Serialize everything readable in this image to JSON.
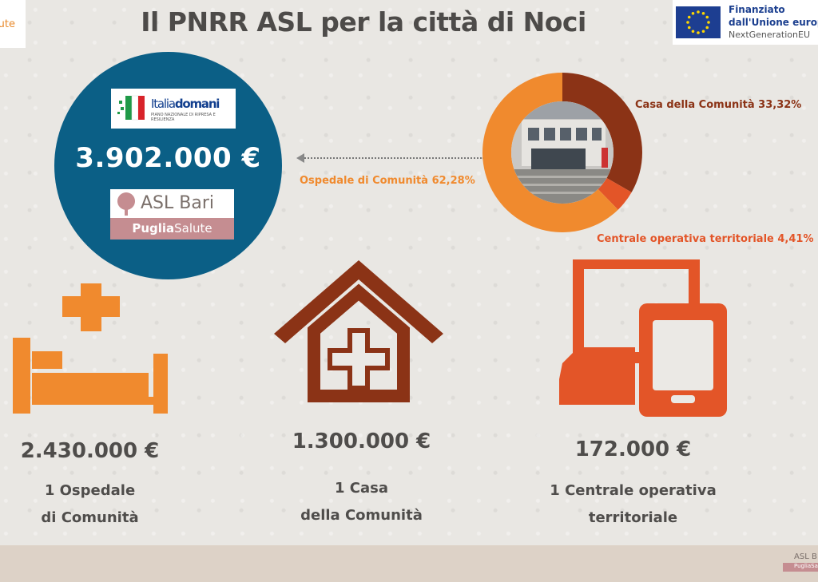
{
  "header": {
    "title": "Il PNRR ASL per la città di Noci",
    "left_logo_fragment": "lute"
  },
  "eu_logo": {
    "line1": "Finanziato",
    "line2": "dall'Unione europea",
    "line3": "NextGenerationEU",
    "flag_color": "#1d3e91",
    "star_color": "#ffd700"
  },
  "circle": {
    "total": "3.902.000 €",
    "italiadomani": {
      "name_a": "Italia",
      "name_b": "domani",
      "subtitle": "PIANO NAZIONALE DI RIPRESA E RESILIENZA"
    },
    "asl_logo": {
      "name": "ASL Bari",
      "bar_a": "Puglia",
      "bar_b": "Salute"
    },
    "color": "#0b5f86"
  },
  "chart_data": {
    "type": "pie",
    "donut": true,
    "slices": [
      {
        "label": "Casa della Comunità 33,32%",
        "value": 33.32,
        "color": "#8b3316"
      },
      {
        "label": "Centrale operativa territoriale 4,41%",
        "value": 4.41,
        "color": "#e35528"
      },
      {
        "label": "Ospedale di Comunità 62,28%",
        "value": 62.28,
        "color": "#f08a2e"
      }
    ]
  },
  "items": [
    {
      "amount": "2.430.000 €",
      "line1": "1 Ospedale",
      "line2": "di Comunità",
      "icon": "hospital-bed-icon",
      "color": "#f08a2e"
    },
    {
      "amount": "1.300.000 €",
      "line1": "1 Casa",
      "line2": "della Comunità",
      "icon": "house-cross-icon",
      "color": "#8b3316"
    },
    {
      "amount": "172.000 €",
      "line1": "1 Centrale operativa",
      "line2": "territoriale",
      "icon": "devices-icon",
      "color": "#e35528"
    }
  ],
  "footer": {
    "asl_small_a": "ASL B",
    "asl_small_b": "PugliaSa"
  }
}
